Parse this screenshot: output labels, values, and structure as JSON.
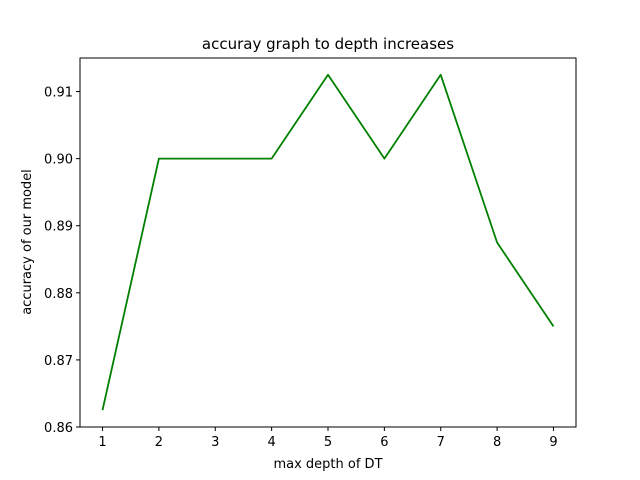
{
  "chart_data": {
    "type": "line",
    "title": "accuray graph to depth increases",
    "xlabel": "max depth of DT",
    "ylabel": "accuracy of our model",
    "x": [
      1,
      2,
      3,
      4,
      5,
      6,
      7,
      8,
      9
    ],
    "series": [
      {
        "values": [
          0.8625,
          0.9,
          0.9,
          0.9,
          0.9125,
          0.9,
          0.9125,
          0.8875,
          0.875
        ],
        "color": "#008000"
      }
    ],
    "xticks": [
      "1",
      "2",
      "3",
      "4",
      "5",
      "6",
      "7",
      "8",
      "9"
    ],
    "yticks": [
      "0.86",
      "0.87",
      "0.88",
      "0.89",
      "0.90",
      "0.91"
    ],
    "xlim": [
      0.6,
      9.4
    ],
    "ylim": [
      0.86,
      0.915
    ],
    "grid": false,
    "legend": "none"
  }
}
